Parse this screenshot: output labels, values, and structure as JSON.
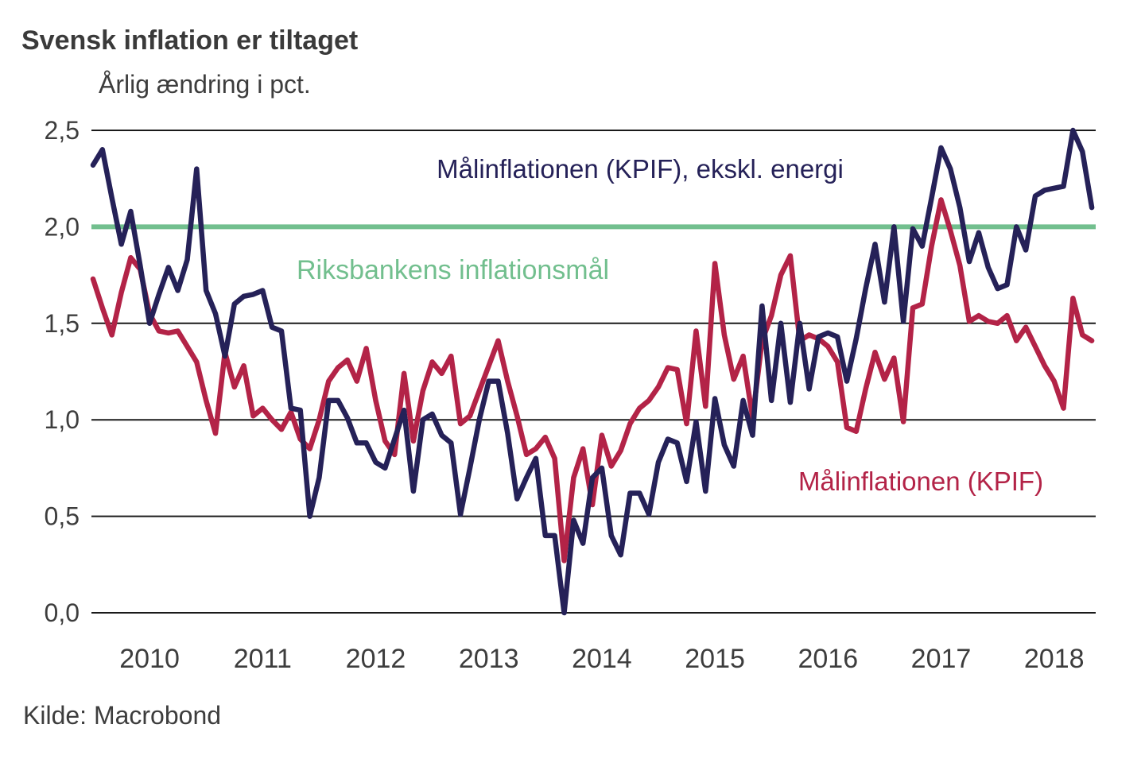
{
  "header": {
    "title": "Svensk inflation er tiltaget",
    "subtitle": "Årlig ændring i pct."
  },
  "source": {
    "label": "Kilde: Macrobond"
  },
  "colors": {
    "background": "#ffffff",
    "grid": "#1a1a1a",
    "axis_text": "#3d3d3d",
    "navy_series": "#252158",
    "red_series": "#b32347",
    "green_target": "#72bf8e"
  },
  "chart_data": {
    "type": "line",
    "title": "Svensk inflation er tiltaget",
    "subtitle": "Årlig ændring i pct.",
    "xlabel": "",
    "ylabel": "Årlig ændring i pct.",
    "frequency": "monthly",
    "x_start": {
      "year": 2010,
      "month": 1
    },
    "x_end": {
      "year": 2018,
      "month": 11
    },
    "ylim": [
      0,
      2.5
    ],
    "y_tick_step": 0.5,
    "y_tick_labels": [
      "0,0",
      "0,5",
      "1,0",
      "1,5",
      "2,0",
      "2,5"
    ],
    "x_tick_labels": [
      "2010",
      "2011",
      "2012",
      "2013",
      "2014",
      "2015",
      "2016",
      "2017",
      "2018"
    ],
    "grid": "horizontal",
    "legend_position": "inline-annotations",
    "target_line": {
      "value": 2.0,
      "label": "Riksbankens inflationsmål",
      "color": "#72bf8e"
    },
    "series": [
      {
        "name": "Målinflationen (KPIF), ekskl. energi",
        "color": "#252158",
        "values": [
          2.32,
          2.4,
          2.15,
          1.91,
          2.08,
          1.8,
          1.5,
          1.65,
          1.79,
          1.67,
          1.83,
          2.3,
          1.67,
          1.55,
          1.33,
          1.6,
          1.64,
          1.65,
          1.67,
          1.48,
          1.46,
          1.06,
          1.05,
          0.5,
          0.7,
          1.1,
          1.1,
          1.01,
          0.88,
          0.88,
          0.78,
          0.75,
          0.9,
          1.05,
          0.63,
          1.0,
          1.03,
          0.92,
          0.88,
          0.51,
          0.75,
          1.0,
          1.2,
          1.2,
          0.93,
          0.59,
          0.7,
          0.8,
          0.4,
          0.4,
          0.0,
          0.48,
          0.36,
          0.7,
          0.75,
          0.4,
          0.3,
          0.62,
          0.62,
          0.51,
          0.78,
          0.9,
          0.88,
          0.68,
          0.99,
          0.63,
          1.11,
          0.87,
          0.76,
          1.1,
          0.92,
          1.59,
          1.1,
          1.5,
          1.09,
          1.5,
          1.16,
          1.43,
          1.45,
          1.43,
          1.2,
          1.42,
          1.68,
          1.91,
          1.61,
          2.0,
          1.51,
          1.99,
          1.9,
          2.15,
          2.41,
          2.3,
          2.1,
          1.82,
          1.97,
          1.79,
          1.68,
          1.7,
          2.0,
          1.88,
          2.16,
          2.19,
          2.2,
          2.21,
          2.5,
          2.39,
          2.1
        ]
      },
      {
        "name": "Målinflationen (KPIF)",
        "color": "#b32347",
        "values": [
          1.73,
          1.58,
          1.44,
          1.66,
          1.84,
          1.78,
          1.55,
          1.46,
          1.45,
          1.46,
          1.38,
          1.3,
          1.1,
          0.93,
          1.35,
          1.17,
          1.28,
          1.02,
          1.06,
          1.0,
          0.95,
          1.04,
          0.9,
          0.85,
          1.0,
          1.2,
          1.27,
          1.31,
          1.2,
          1.37,
          1.1,
          0.89,
          0.82,
          1.24,
          0.89,
          1.15,
          1.3,
          1.24,
          1.33,
          0.98,
          1.02,
          1.15,
          1.28,
          1.41,
          1.2,
          1.02,
          0.82,
          0.85,
          0.91,
          0.8,
          0.27,
          0.7,
          0.85,
          0.56,
          0.92,
          0.76,
          0.84,
          0.98,
          1.06,
          1.1,
          1.17,
          1.27,
          1.26,
          0.98,
          1.46,
          1.07,
          1.81,
          1.44,
          1.21,
          1.33,
          1.01,
          1.41,
          1.54,
          1.75,
          1.85,
          1.41,
          1.44,
          1.42,
          1.38,
          1.3,
          0.96,
          0.94,
          1.16,
          1.35,
          1.21,
          1.32,
          0.99,
          1.58,
          1.6,
          1.9,
          2.14,
          1.98,
          1.8,
          1.51,
          1.54,
          1.51,
          1.5,
          1.54,
          1.41,
          1.48,
          1.38,
          1.28,
          1.2,
          1.06,
          1.63,
          1.44,
          1.41
        ]
      }
    ]
  }
}
